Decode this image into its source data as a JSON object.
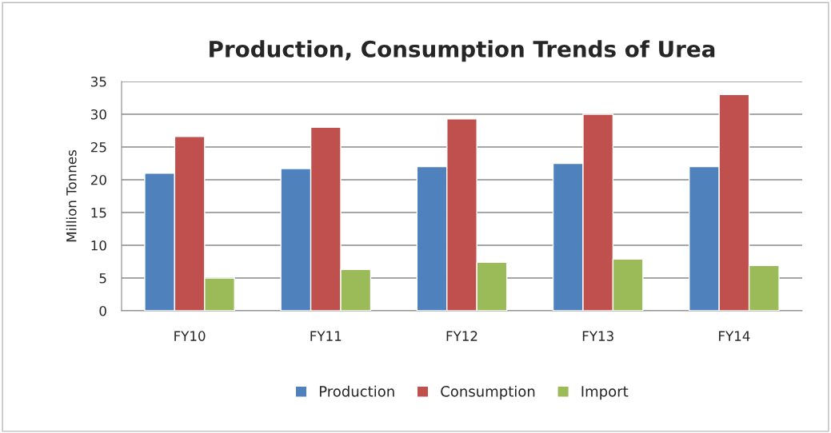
{
  "chart_data": {
    "type": "bar",
    "title": "Production, Consumption Trends of Urea",
    "ylabel": "Million Tonnes",
    "categories": [
      "FY10",
      "FY11",
      "FY12",
      "FY13",
      "FY14"
    ],
    "series": [
      {
        "name": "Production",
        "color": "#4f81bd",
        "values": [
          21.0,
          21.7,
          22.0,
          22.5,
          22.0
        ]
      },
      {
        "name": "Consumption",
        "color": "#c0504d",
        "values": [
          26.6,
          28.0,
          29.3,
          30.0,
          33.0
        ]
      },
      {
        "name": "Import",
        "color": "#9bbb59",
        "values": [
          5.0,
          6.3,
          7.4,
          7.9,
          6.9
        ]
      }
    ],
    "ylim": [
      0,
      35
    ],
    "yticks": [
      0,
      5,
      10,
      15,
      20,
      25,
      30,
      35
    ],
    "grid": "y",
    "legend": "bottom"
  }
}
